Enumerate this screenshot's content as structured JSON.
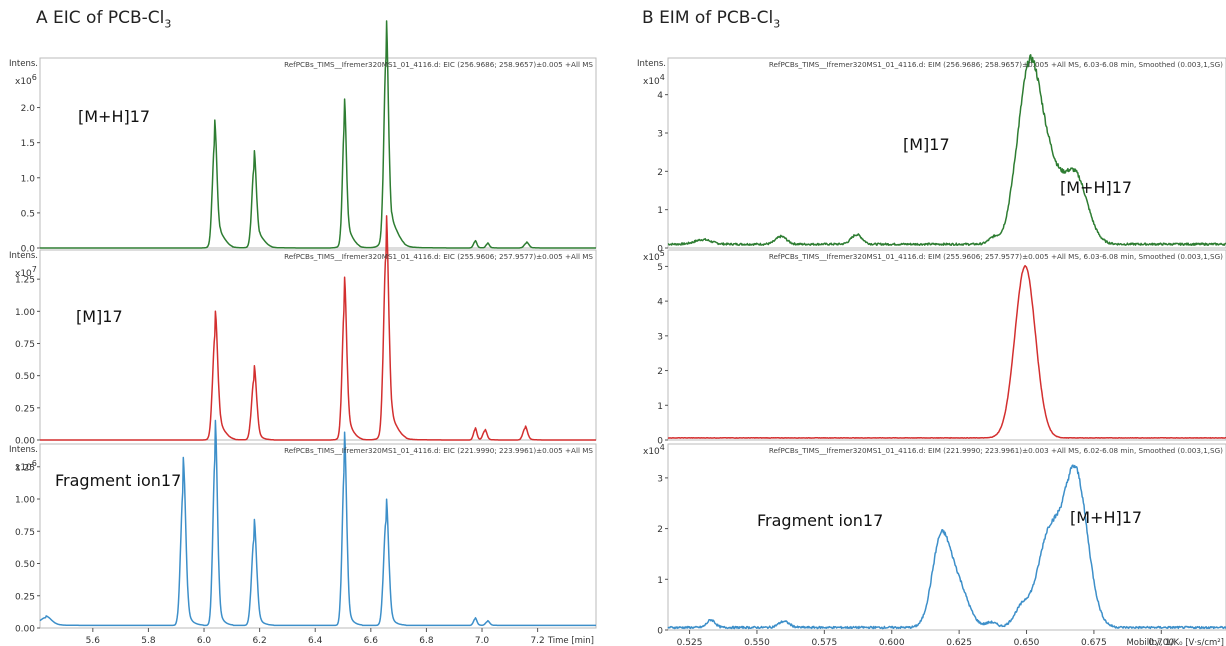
{
  "panel_a": {
    "title": "A EIC of PCB-Cl",
    "title_sub": "3"
  },
  "panel_b": {
    "title": "B EIM of PCB-Cl",
    "title_sub": "3"
  },
  "colors": {
    "green": "#2e7d32",
    "red": "#d32f2f",
    "blue": "#3d8fc9",
    "axis": "#555555",
    "frame": "#bbbbbb"
  },
  "chart_data": [
    {
      "type": "line",
      "panel": "A",
      "intens_label": "Intens.",
      "multiplier": "x10",
      "exponent": "6",
      "header": "RefPCBs_TIMS__Ifremer320MS1_01_4116.d: EIC (256.9686; 258.9657)±0.005 +All MS",
      "annotation": "[M+H]",
      "annotation_sup": "+",
      "color": "green",
      "xlim": [
        5.41,
        7.41
      ],
      "ylim": [
        0,
        2.62
      ],
      "yticks": [
        0.0,
        0.5,
        1.0,
        1.5,
        2.0
      ],
      "ytick_labels": [
        "0.0",
        "0.5",
        "1.0",
        "1.5",
        "2.0"
      ],
      "baseline": 0.0,
      "peaks": [
        {
          "x": 6.038,
          "y": 1.42,
          "w": 0.008
        },
        {
          "x": 6.058,
          "y": 0.12,
          "w": 0.02
        },
        {
          "x": 6.18,
          "y": 1.08,
          "w": 0.008
        },
        {
          "x": 6.2,
          "y": 0.1,
          "w": 0.02
        },
        {
          "x": 6.505,
          "y": 1.64,
          "w": 0.007
        },
        {
          "x": 6.52,
          "y": 0.12,
          "w": 0.02
        },
        {
          "x": 6.655,
          "y": 2.55,
          "w": 0.008
        },
        {
          "x": 6.675,
          "y": 0.22,
          "w": 0.025
        },
        {
          "x": 6.975,
          "y": 0.09,
          "w": 0.006
        },
        {
          "x": 7.02,
          "y": 0.06,
          "w": 0.006
        },
        {
          "x": 7.16,
          "y": 0.07,
          "w": 0.008
        }
      ]
    },
    {
      "type": "line",
      "panel": "A",
      "intens_label": "Intens.",
      "multiplier": "x10",
      "exponent": "7",
      "header": "RefPCBs_TIMS__Ifremer320MS1_01_4116.d: EIC (255.9606; 257.9577)±0.005 +All MS",
      "annotation": "[M]",
      "annotation_sup": "+",
      "color": "red",
      "xlim": [
        5.41,
        7.41
      ],
      "ylim": [
        0,
        1.43
      ],
      "yticks": [
        0.0,
        0.25,
        0.5,
        0.75,
        1.0,
        1.25
      ],
      "ytick_labels": [
        "0.00",
        "0.25",
        "0.50",
        "0.75",
        "1.00",
        "1.25"
      ],
      "baseline": 0.0,
      "peaks": [
        {
          "x": 6.04,
          "y": 0.79,
          "w": 0.009
        },
        {
          "x": 6.06,
          "y": 0.05,
          "w": 0.02
        },
        {
          "x": 6.18,
          "y": 0.47,
          "w": 0.009
        },
        {
          "x": 6.505,
          "y": 0.99,
          "w": 0.008
        },
        {
          "x": 6.52,
          "y": 0.05,
          "w": 0.02
        },
        {
          "x": 6.655,
          "y": 1.39,
          "w": 0.009
        },
        {
          "x": 6.675,
          "y": 0.08,
          "w": 0.025
        },
        {
          "x": 6.975,
          "y": 0.08,
          "w": 0.006
        },
        {
          "x": 7.01,
          "y": 0.07,
          "w": 0.007
        },
        {
          "x": 7.155,
          "y": 0.09,
          "w": 0.008
        }
      ]
    },
    {
      "type": "line",
      "panel": "A",
      "intens_label": "Intens.",
      "multiplier": "x10",
      "exponent": "6",
      "header": "RefPCBs_TIMS__Ifremer320MS1_01_4116.d: EIC (221.9990; 223.9961)±0.005 +All MS",
      "annotation": "Fragment ion",
      "annotation_sup": "",
      "color": "blue",
      "xlim": [
        5.41,
        7.41
      ],
      "ylim": [
        0,
        1.38
      ],
      "yticks": [
        0.0,
        0.25,
        0.5,
        0.75,
        1.0,
        1.25
      ],
      "ytick_labels": [
        "0.00",
        "0.25",
        "0.50",
        "0.75",
        "1.00",
        "1.25"
      ],
      "baseline": 0.02,
      "xticks": [
        5.6,
        5.8,
        6.0,
        6.2,
        6.4,
        6.6,
        6.8,
        7.0,
        7.2
      ],
      "xtick_labels": [
        "5.6",
        "5.8",
        "6.0",
        "6.2",
        "6.4",
        "6.6",
        "6.8",
        "7.0",
        "7.2"
      ],
      "xlabel": "Time [min]",
      "peaks": [
        {
          "x": 5.925,
          "y": 1.05,
          "w": 0.009
        },
        {
          "x": 6.04,
          "y": 1.3,
          "w": 0.008
        },
        {
          "x": 6.18,
          "y": 0.67,
          "w": 0.009
        },
        {
          "x": 6.505,
          "y": 1.21,
          "w": 0.008
        },
        {
          "x": 6.655,
          "y": 0.81,
          "w": 0.009
        },
        {
          "x": 5.43,
          "y": 0.06,
          "w": 0.02
        },
        {
          "x": 6.975,
          "y": 0.05,
          "w": 0.006
        },
        {
          "x": 7.02,
          "y": 0.03,
          "w": 0.007
        }
      ]
    },
    {
      "type": "line",
      "panel": "B",
      "intens_label": "Intens.",
      "multiplier": "x10",
      "exponent": "4",
      "header": "RefPCBs_TIMS__Ifremer320MS1_01_4116.d: EIM (256.9686; 258.9657)±0.005 +All MS, 6.03-6.08 min, Smoothed (0.003,1,SG)",
      "annotations": [
        {
          "text": "[M]",
          "sup": "+"
        },
        {
          "text": "[M+H]",
          "sup": "+"
        }
      ],
      "color": "green",
      "xlim": [
        0.517,
        0.724
      ],
      "ylim": [
        0,
        4.8
      ],
      "yticks": [
        0,
        1,
        2,
        3,
        4
      ],
      "ytick_labels": [
        "0",
        "1",
        "2",
        "3",
        "4"
      ],
      "baseline": 0.1,
      "noise": 0.05,
      "peaks": [
        {
          "x": 0.651,
          "y": 3.6,
          "w": 0.0035
        },
        {
          "x": 0.657,
          "y": 2.3,
          "w": 0.0045
        },
        {
          "x": 0.668,
          "y": 1.8,
          "w": 0.0045
        },
        {
          "x": 0.646,
          "y": 1.0,
          "w": 0.003
        },
        {
          "x": 0.53,
          "y": 0.12,
          "w": 0.003
        },
        {
          "x": 0.559,
          "y": 0.2,
          "w": 0.002
        },
        {
          "x": 0.587,
          "y": 0.25,
          "w": 0.002
        },
        {
          "x": 0.638,
          "y": 0.18,
          "w": 0.002
        }
      ]
    },
    {
      "type": "line",
      "panel": "B",
      "intens_label": "",
      "multiplier": "x10",
      "exponent": "5",
      "header": "RefPCBs_TIMS__Ifremer320MS1_01_4116.d: EIM (255.9606; 257.9577)±0.005 +All MS, 6.03-6.08 min, Smoothed (0.003,1,SG)",
      "annotations": [],
      "color": "red",
      "xlim": [
        0.517,
        0.724
      ],
      "ylim": [
        0,
        5.3
      ],
      "yticks": [
        0,
        1,
        2,
        3,
        4,
        5
      ],
      "ytick_labels": [
        "0",
        "1",
        "2",
        "3",
        "4",
        "5"
      ],
      "baseline": 0.06,
      "noise": 0.01,
      "peaks": [
        {
          "x": 0.6495,
          "y": 4.95,
          "w": 0.0038
        }
      ]
    },
    {
      "type": "line",
      "panel": "B",
      "intens_label": "",
      "multiplier": "x10",
      "exponent": "4",
      "header": "RefPCBs_TIMS__Ifremer320MS1_01_4116.d: EIM (221.9990; 223.9961)±0.003 +All MS, 6.02-6.08 min, Smoothed (0.003,1,SG)",
      "annotations": [
        {
          "text": "Fragment ion",
          "sup": ""
        },
        {
          "text": "[M+H]",
          "sup": "+"
        }
      ],
      "color": "blue",
      "xlim": [
        0.517,
        0.724
      ],
      "ylim": [
        0,
        3.55
      ],
      "yticks": [
        0,
        1,
        2,
        3
      ],
      "ytick_labels": [
        "0",
        "1",
        "2",
        "3"
      ],
      "baseline": 0.05,
      "noise": 0.04,
      "xticks": [
        0.525,
        0.55,
        0.575,
        0.6,
        0.625,
        0.65,
        0.675,
        0.7
      ],
      "xtick_labels": [
        "0.525",
        "0.550",
        "0.575",
        "0.600",
        "0.625",
        "0.650",
        "0.675",
        "0.700"
      ],
      "xlabel": "Mobility, 1/K₀ [V·s/cm²]",
      "peaks": [
        {
          "x": 0.618,
          "y": 1.55,
          "w": 0.0032
        },
        {
          "x": 0.624,
          "y": 0.9,
          "w": 0.004
        },
        {
          "x": 0.668,
          "y": 3.1,
          "w": 0.0045
        },
        {
          "x": 0.658,
          "y": 1.7,
          "w": 0.004
        },
        {
          "x": 0.6485,
          "y": 0.4,
          "w": 0.003
        },
        {
          "x": 0.533,
          "y": 0.15,
          "w": 0.0015
        },
        {
          "x": 0.56,
          "y": 0.12,
          "w": 0.002
        },
        {
          "x": 0.637,
          "y": 0.1,
          "w": 0.002
        }
      ]
    }
  ]
}
